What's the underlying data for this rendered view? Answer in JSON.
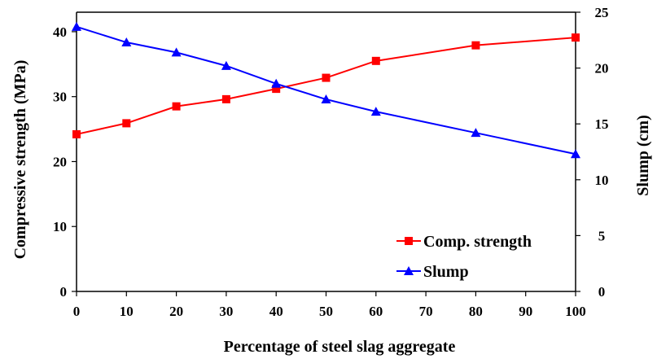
{
  "chart_data": {
    "type": "line",
    "xlabel": "Percentage of steel slag aggregate",
    "ylabel": "Compressive strength (MPa)",
    "y2label": "Slump (cm)",
    "xlim": [
      0,
      100
    ],
    "ylim": [
      0,
      43
    ],
    "y2lim": [
      0,
      25
    ],
    "xticks": [
      0,
      10,
      20,
      30,
      40,
      50,
      60,
      70,
      80,
      90,
      100
    ],
    "yticks": [
      0,
      10,
      20,
      30,
      40
    ],
    "y2ticks": [
      0,
      5,
      10,
      15,
      20,
      25
    ],
    "grid": false,
    "legend": "bottom-right",
    "series": [
      {
        "name": "Comp. strength",
        "axis": "left",
        "marker": "square",
        "color": "#ff0000",
        "x": [
          0,
          10,
          20,
          30,
          40,
          50,
          60,
          80,
          100
        ],
        "values": [
          24.2,
          25.9,
          28.5,
          29.6,
          31.2,
          32.9,
          35.5,
          37.9,
          39.1
        ]
      },
      {
        "name": "Slump",
        "axis": "right",
        "marker": "triangle",
        "color": "#0000ff",
        "x": [
          0,
          10,
          20,
          30,
          40,
          50,
          60,
          80,
          100
        ],
        "values": [
          23.7,
          22.3,
          21.4,
          20.2,
          18.6,
          17.2,
          16.1,
          14.2,
          12.3
        ]
      }
    ]
  }
}
